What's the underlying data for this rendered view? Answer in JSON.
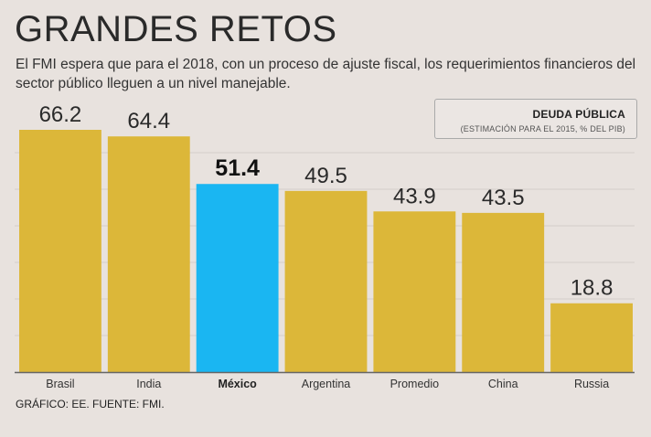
{
  "header": {
    "title": "GRANDES RETOS",
    "subtitle": "El FMI espera que para el 2018, con un proceso de ajuste fiscal, los requerimientos financieros del sector público lleguen a un nivel manejable."
  },
  "legend": {
    "title": "DEUDA PÚBLICA",
    "subtitle": "(ESTIMACIÓN PARA EL 2015, % DEL PIB)"
  },
  "footer": {
    "source": "GRÁFICO: EE. FUENTE: FMI."
  },
  "colors": {
    "bar": "#dcb739",
    "highlight": "#1ab6f2",
    "grid": "#d4cdc9",
    "axis": "#666666"
  },
  "chart_data": {
    "type": "bar",
    "title": "DEUDA PÚBLICA",
    "subtitle": "(ESTIMACIÓN PARA EL 2015, % DEL PIB)",
    "categories": [
      "Brasil",
      "India",
      "México",
      "Argentina",
      "Promedio",
      "China",
      "Russia"
    ],
    "values": [
      66.2,
      64.4,
      51.4,
      49.5,
      43.9,
      43.5,
      18.8
    ],
    "value_labels": [
      "66.2",
      "64.4",
      "51.4",
      "49.5",
      "43.9",
      "43.5",
      "18.8"
    ],
    "highlight": "México",
    "xlabel": "",
    "ylabel": "",
    "ylim": [
      0,
      70
    ],
    "grid": true,
    "legend_position": "top-right"
  }
}
